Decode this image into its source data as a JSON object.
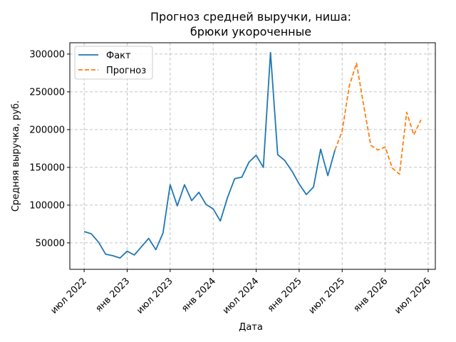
{
  "chart_data": {
    "type": "line",
    "title": "Прогноз средней выручки, ниша:\nбрюки укороченные",
    "title_lines": [
      "Прогноз средней выручки, ниша:",
      "брюки укороченные"
    ],
    "xlabel": "Дата",
    "ylabel": "Средняя выручка, руб.",
    "x_tick_labels": [
      "июл 2022",
      "янв 2023",
      "июл 2023",
      "янв 2024",
      "июл 2024",
      "янв 2025",
      "июл 2025",
      "янв 2026",
      "июл 2026"
    ],
    "x_ticks": [
      "2022-07",
      "2023-01",
      "2023-07",
      "2024-01",
      "2024-07",
      "2025-01",
      "2025-07",
      "2026-01",
      "2026-07"
    ],
    "y_ticks": [
      50000,
      100000,
      150000,
      200000,
      250000,
      300000
    ],
    "y_tick_labels": [
      "50000",
      "100000",
      "150000",
      "200000",
      "250000",
      "300000"
    ],
    "xlim": [
      "2022-05",
      "2026-08"
    ],
    "ylim": [
      15000,
      315000
    ],
    "grid": true,
    "legend_position": "top-left",
    "series": [
      {
        "name": "Факт",
        "color": "#1f77b4",
        "style": "solid",
        "x": [
          "2022-07",
          "2022-08",
          "2022-09",
          "2022-10",
          "2022-11",
          "2022-12",
          "2023-01",
          "2023-02",
          "2023-03",
          "2023-04",
          "2023-05",
          "2023-06",
          "2023-07",
          "2023-08",
          "2023-09",
          "2023-10",
          "2023-11",
          "2023-12",
          "2024-01",
          "2024-02",
          "2024-03",
          "2024-04",
          "2024-05",
          "2024-06",
          "2024-07",
          "2024-08",
          "2024-09",
          "2024-10",
          "2024-11",
          "2024-12",
          "2025-01",
          "2025-02",
          "2025-03",
          "2025-04",
          "2025-05",
          "2025-06"
        ],
        "values": [
          65000,
          62000,
          51000,
          35000,
          33000,
          30000,
          39000,
          34000,
          45000,
          56000,
          41000,
          63000,
          127000,
          99000,
          127000,
          106000,
          117000,
          101000,
          95000,
          79000,
          110000,
          135000,
          137000,
          157000,
          166000,
          150000,
          302000,
          167000,
          159000,
          145000,
          128000,
          114000,
          124000,
          174000,
          139000,
          173000
        ]
      },
      {
        "name": "Прогноз",
        "color": "#ff7f0e",
        "style": "dashed",
        "x": [
          "2025-06",
          "2025-07",
          "2025-08",
          "2025-09",
          "2025-10",
          "2025-11",
          "2025-12",
          "2026-01",
          "2026-02",
          "2026-03",
          "2026-04",
          "2026-05",
          "2026-06"
        ],
        "values": [
          173000,
          198000,
          258000,
          288000,
          232000,
          179000,
          173000,
          177000,
          149000,
          141000,
          223000,
          193000,
          213000
        ]
      }
    ]
  }
}
